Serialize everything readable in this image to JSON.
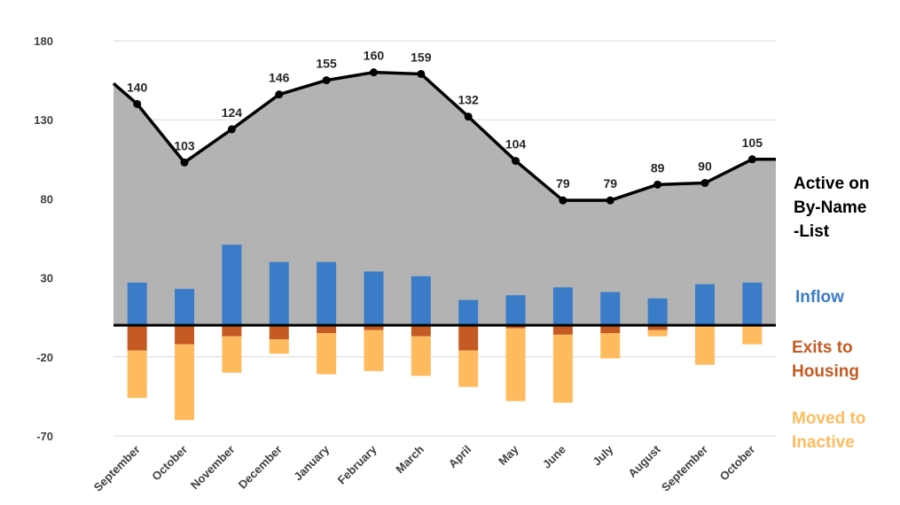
{
  "chart_data": {
    "type": "combo",
    "title": "",
    "xlabel": "",
    "ylabel": "",
    "ylim": [
      -70,
      180
    ],
    "yticks": [
      180,
      130,
      80,
      30,
      -20,
      -70
    ],
    "grid": true,
    "categories": [
      "September",
      "October",
      "November",
      "December",
      "January",
      "February",
      "March",
      "April",
      "May",
      "June",
      "July",
      "August",
      "September",
      "October"
    ],
    "series": [
      {
        "name": "Active on By-Name -List",
        "type": "line+area",
        "color": "#000000",
        "area_color": "#B3B3B3",
        "values": [
          140,
          103,
          124,
          146,
          155,
          160,
          159,
          132,
          104,
          79,
          79,
          89,
          90,
          105
        ]
      },
      {
        "name": "Inflow",
        "type": "bar",
        "color": "#3B7CC9",
        "values": [
          27,
          23,
          51,
          40,
          40,
          34,
          31,
          16,
          19,
          24,
          21,
          17,
          26,
          27
        ]
      },
      {
        "name": "Exits to Housing",
        "type": "stacked-bar-negative",
        "color": "#C55A23",
        "values": [
          -16,
          -12,
          -7,
          -9,
          -5,
          -3,
          -7,
          -16,
          -2,
          -6,
          -5,
          -3,
          0,
          0
        ]
      },
      {
        "name": "Moved to Inactive",
        "type": "stacked-bar-negative",
        "color": "#FFBB5E",
        "values": [
          -30,
          -48,
          -23,
          -9,
          -26,
          -26,
          -25,
          -23,
          -46,
          -43,
          -16,
          -4,
          -25,
          -12
        ]
      }
    ],
    "line_start_value": 153,
    "legend": [
      "Active on By-Name -List",
      "Inflow",
      "Exits to Housing",
      "Moved to Inactive"
    ],
    "legend_position": "right"
  },
  "legend_lines": {
    "active": [
      "Active on",
      "By-Name",
      "-List"
    ],
    "inflow": [
      "Inflow"
    ],
    "exits": [
      "Exits to",
      "Housing"
    ],
    "inactive": [
      "Moved to",
      "Inactive"
    ]
  }
}
